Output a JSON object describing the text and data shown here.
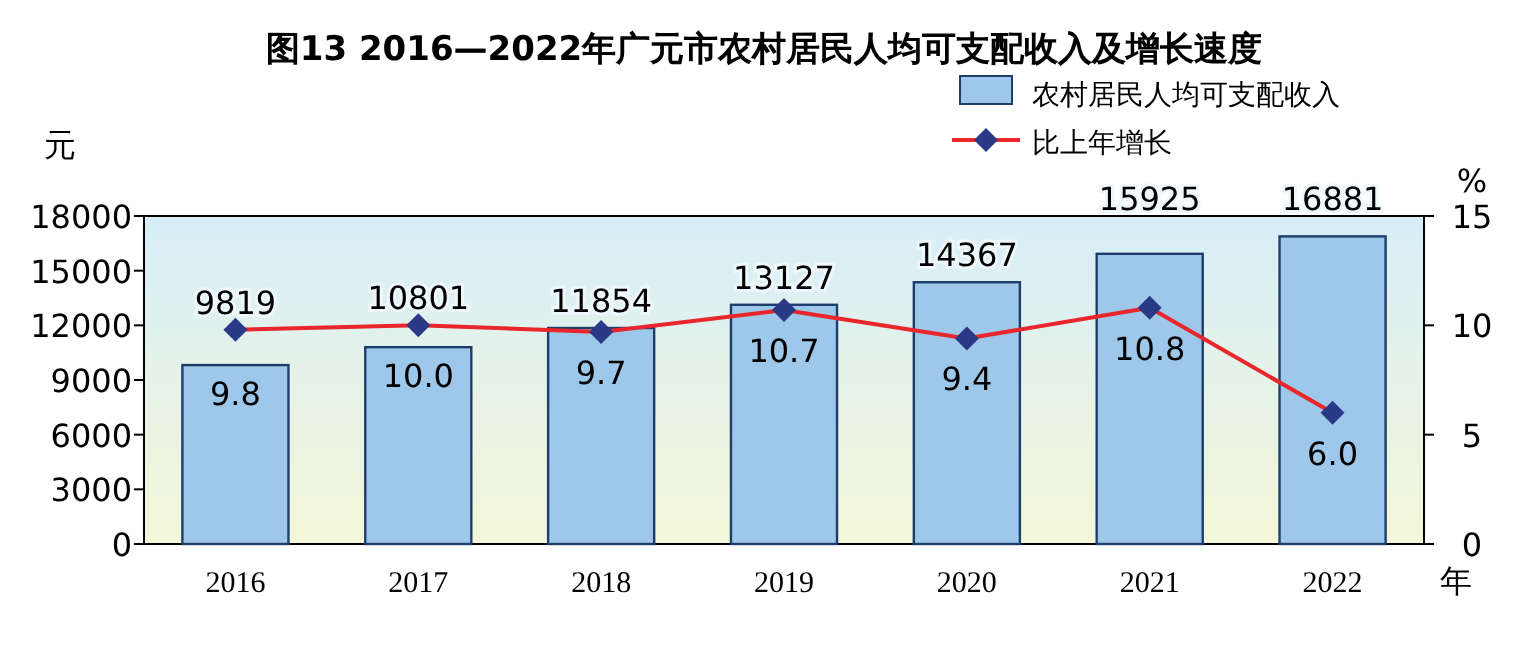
{
  "chart_data": {
    "type": "bar",
    "title": "图13 2016—2022年广元市农村居民人均可支配收入及增长速度",
    "ylabel": "元",
    "y2label": "%",
    "xlabel": "年",
    "categories": [
      "2016",
      "2017",
      "2018",
      "2019",
      "2020",
      "2021",
      "2022"
    ],
    "series": [
      {
        "name": "农村居民人均可支配收入",
        "color": "#9dc8ea",
        "values": [
          9819,
          10801,
          11854,
          13127,
          14367,
          15925,
          16881
        ],
        "value_labels": [
          "9819",
          "10801",
          "11854",
          "13127",
          "14367",
          "15925",
          "16881"
        ]
      },
      {
        "name": "比上年增长",
        "type": "line",
        "axis": "y2",
        "color": "#e8262b",
        "values": [
          9.8,
          10.0,
          9.7,
          10.7,
          9.4,
          10.8,
          6.0
        ],
        "value_labels": [
          "9.8",
          "10.0",
          "9.7",
          "10.7",
          "9.4",
          "10.8",
          "6.0"
        ]
      }
    ],
    "ylim": [
      0,
      18000
    ],
    "yticks": [
      0,
      3000,
      6000,
      9000,
      12000,
      15000,
      18000
    ],
    "y2lim": [
      0,
      15
    ],
    "y2ticks": [
      0,
      5,
      10,
      15
    ],
    "marker": "diamond",
    "legend": "top right"
  }
}
